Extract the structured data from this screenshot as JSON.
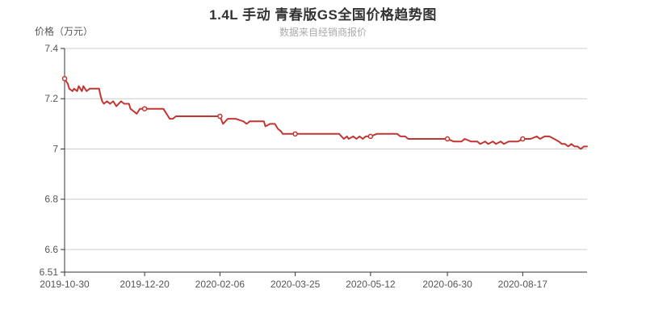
{
  "chart": {
    "title": "1.4L 手动 青春版GS全国价格趋势图",
    "subtitle": "数据来自经销商报价",
    "y_axis_name": "价格（万元）",
    "colors": {
      "line": "#c23531",
      "marker_fill": "#ffffff",
      "title_text": "#333333",
      "subtitle_text": "#aaaaaa",
      "axis_name_text": "#555555",
      "tick_label_text": "#555555",
      "axis_line": "#333333",
      "gridline": "#cccccc",
      "background": "#ffffff"
    }
  },
  "chart_data": {
    "type": "line",
    "title": "1.4L 手动 青春版GS全国价格趋势图",
    "subtitle": "数据来自经销商报价",
    "xlabel": "",
    "ylabel": "价格（万元）",
    "ylim": [
      6.51,
      7.4
    ],
    "grid": "horizontal-only",
    "legend": "none",
    "y_ticks": [
      {
        "v": 7.4,
        "label": "7.4"
      },
      {
        "v": 7.2,
        "label": "7.2"
      },
      {
        "v": 7.0,
        "label": "7"
      },
      {
        "v": 6.8,
        "label": "6.8"
      },
      {
        "v": 6.6,
        "label": "6.6"
      },
      {
        "v": 6.51,
        "label": "6.51"
      }
    ],
    "y_gridlines": [
      7.4,
      7.2,
      7.0,
      6.8,
      6.6
    ],
    "x_tick_labels": [
      "2019-10-30",
      "2019-12-20",
      "2020-02-06",
      "2020-03-25",
      "2020-05-12",
      "2020-06-30",
      "2020-08-17"
    ],
    "marker_dates": [
      "2019-10-30",
      "2019-12-20",
      "2020-02-06",
      "2020-03-25",
      "2020-05-12",
      "2020-06-30",
      "2020-08-17"
    ],
    "series": [
      {
        "color": "#c23531",
        "points": [
          [
            "2019-10-30",
            7.28
          ],
          [
            "2019-10-31",
            7.27
          ],
          [
            "2019-11-01",
            7.26
          ],
          [
            "2019-11-02",
            7.24
          ],
          [
            "2019-11-04",
            7.23
          ],
          [
            "2019-11-05",
            7.24
          ],
          [
            "2019-11-07",
            7.23
          ],
          [
            "2019-11-08",
            7.25
          ],
          [
            "2019-11-10",
            7.23
          ],
          [
            "2019-11-11",
            7.25
          ],
          [
            "2019-11-13",
            7.23
          ],
          [
            "2019-11-15",
            7.24
          ],
          [
            "2019-11-17",
            7.24
          ],
          [
            "2019-11-19",
            7.24
          ],
          [
            "2019-11-21",
            7.24
          ],
          [
            "2019-11-22",
            7.21
          ],
          [
            "2019-11-23",
            7.19
          ],
          [
            "2019-11-24",
            7.18
          ],
          [
            "2019-11-26",
            7.19
          ],
          [
            "2019-11-28",
            7.18
          ],
          [
            "2019-11-30",
            7.19
          ],
          [
            "2019-12-02",
            7.17
          ],
          [
            "2019-12-05",
            7.19
          ],
          [
            "2019-12-07",
            7.18
          ],
          [
            "2019-12-09",
            7.18
          ],
          [
            "2019-12-10",
            7.18
          ],
          [
            "2019-12-11",
            7.16
          ],
          [
            "2019-12-13",
            7.15
          ],
          [
            "2019-12-15",
            7.14
          ],
          [
            "2019-12-17",
            7.16
          ],
          [
            "2019-12-20",
            7.16
          ],
          [
            "2019-12-24",
            7.16
          ],
          [
            "2019-12-28",
            7.16
          ],
          [
            "2020-01-01",
            7.16
          ],
          [
            "2020-01-02",
            7.15
          ],
          [
            "2020-01-04",
            7.13
          ],
          [
            "2020-01-05",
            7.12
          ],
          [
            "2020-01-07",
            7.12
          ],
          [
            "2020-01-09",
            7.13
          ],
          [
            "2020-01-11",
            7.13
          ],
          [
            "2020-01-15",
            7.13
          ],
          [
            "2020-01-22",
            7.13
          ],
          [
            "2020-01-29",
            7.13
          ],
          [
            "2020-02-04",
            7.13
          ],
          [
            "2020-02-06",
            7.13
          ],
          [
            "2020-02-08",
            7.1
          ],
          [
            "2020-02-11",
            7.12
          ],
          [
            "2020-02-16",
            7.12
          ],
          [
            "2020-02-21",
            7.11
          ],
          [
            "2020-02-23",
            7.1
          ],
          [
            "2020-02-25",
            7.11
          ],
          [
            "2020-03-01",
            7.11
          ],
          [
            "2020-03-05",
            7.11
          ],
          [
            "2020-03-06",
            7.09
          ],
          [
            "2020-03-09",
            7.1
          ],
          [
            "2020-03-12",
            7.1
          ],
          [
            "2020-03-14",
            7.08
          ],
          [
            "2020-03-16",
            7.07
          ],
          [
            "2020-03-17",
            7.06
          ],
          [
            "2020-03-20",
            7.06
          ],
          [
            "2020-03-25",
            7.06
          ],
          [
            "2020-03-30",
            7.06
          ],
          [
            "2020-04-07",
            7.06
          ],
          [
            "2020-04-14",
            7.06
          ],
          [
            "2020-04-22",
            7.06
          ],
          [
            "2020-04-25",
            7.04
          ],
          [
            "2020-04-27",
            7.05
          ],
          [
            "2020-04-28",
            7.04
          ],
          [
            "2020-05-01",
            7.05
          ],
          [
            "2020-05-03",
            7.04
          ],
          [
            "2020-05-05",
            7.05
          ],
          [
            "2020-05-07",
            7.04
          ],
          [
            "2020-05-09",
            7.05
          ],
          [
            "2020-05-12",
            7.05
          ],
          [
            "2020-05-16",
            7.06
          ],
          [
            "2020-05-23",
            7.06
          ],
          [
            "2020-05-29",
            7.06
          ],
          [
            "2020-05-31",
            7.05
          ],
          [
            "2020-06-03",
            7.05
          ],
          [
            "2020-06-05",
            7.04
          ],
          [
            "2020-06-10",
            7.04
          ],
          [
            "2020-06-18",
            7.04
          ],
          [
            "2020-06-26",
            7.04
          ],
          [
            "2020-06-30",
            7.04
          ],
          [
            "2020-07-04",
            7.03
          ],
          [
            "2020-07-09",
            7.03
          ],
          [
            "2020-07-11",
            7.04
          ],
          [
            "2020-07-15",
            7.03
          ],
          [
            "2020-07-19",
            7.03
          ],
          [
            "2020-07-21",
            7.02
          ],
          [
            "2020-07-24",
            7.03
          ],
          [
            "2020-07-26",
            7.02
          ],
          [
            "2020-07-29",
            7.03
          ],
          [
            "2020-07-31",
            7.02
          ],
          [
            "2020-08-03",
            7.03
          ],
          [
            "2020-08-05",
            7.02
          ],
          [
            "2020-08-08",
            7.03
          ],
          [
            "2020-08-11",
            7.03
          ],
          [
            "2020-08-14",
            7.03
          ],
          [
            "2020-08-17",
            7.04
          ],
          [
            "2020-08-19",
            7.04
          ],
          [
            "2020-08-22",
            7.04
          ],
          [
            "2020-08-26",
            7.05
          ],
          [
            "2020-08-28",
            7.04
          ],
          [
            "2020-08-31",
            7.05
          ],
          [
            "2020-09-03",
            7.05
          ],
          [
            "2020-09-06",
            7.04
          ],
          [
            "2020-09-09",
            7.03
          ],
          [
            "2020-09-11",
            7.02
          ],
          [
            "2020-09-13",
            7.02
          ],
          [
            "2020-09-15",
            7.01
          ],
          [
            "2020-09-17",
            7.02
          ],
          [
            "2020-09-19",
            7.01
          ],
          [
            "2020-09-21",
            7.01
          ],
          [
            "2020-09-23",
            7.0
          ],
          [
            "2020-09-25",
            7.01
          ],
          [
            "2020-09-27",
            7.01
          ]
        ]
      }
    ]
  }
}
